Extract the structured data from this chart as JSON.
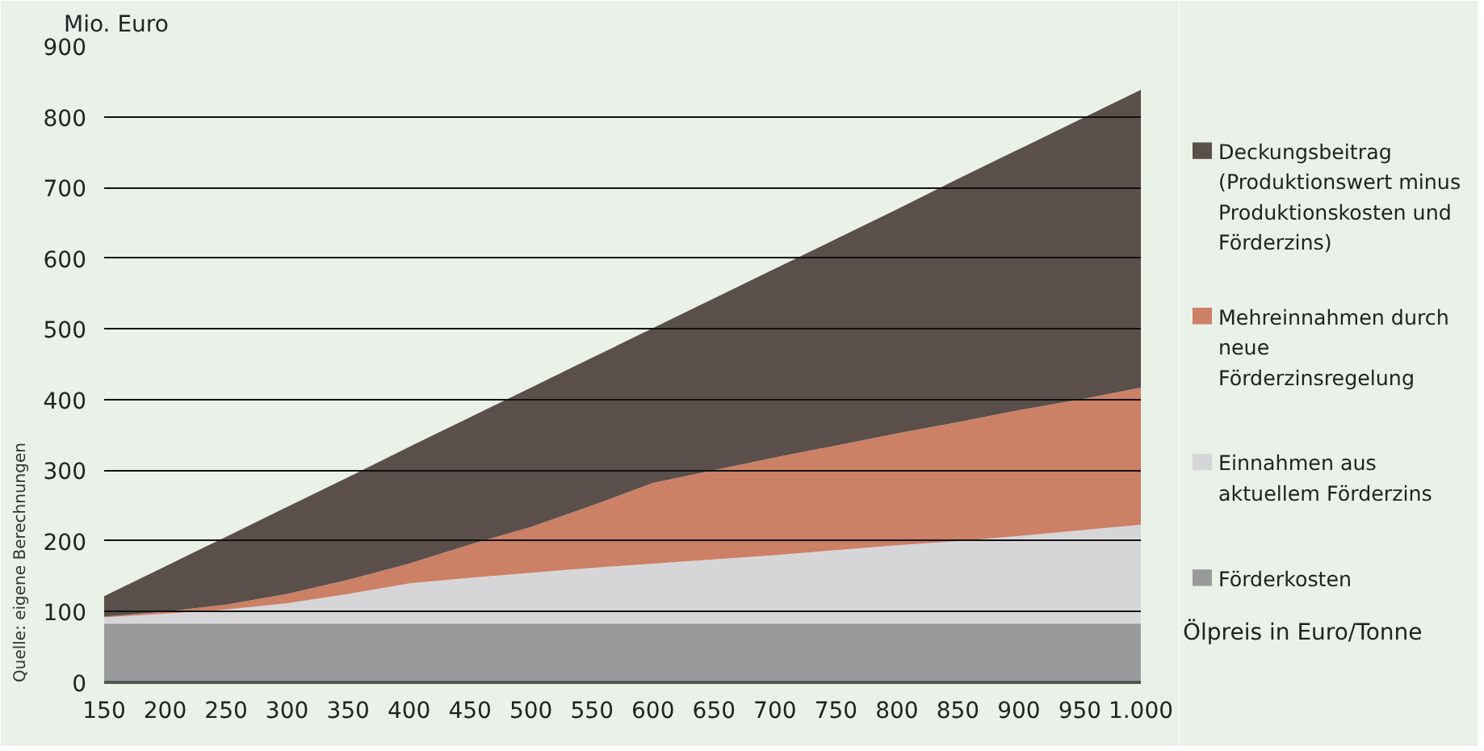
{
  "chart_data": {
    "type": "area",
    "stacked": true,
    "ylabel": "Mio. Euro",
    "xlabel": "Ölpreis in Euro/Tonne",
    "x": [
      150,
      200,
      250,
      300,
      350,
      400,
      450,
      500,
      550,
      600,
      650,
      700,
      750,
      800,
      850,
      900,
      950,
      1000
    ],
    "series": [
      {
        "name": "Förderkosten",
        "color": "#9a9a9c",
        "values": [
          83,
          83,
          83,
          83,
          83,
          83,
          83,
          83,
          83,
          83,
          83,
          83,
          83,
          83,
          83,
          83,
          83,
          83
        ]
      },
      {
        "name": "Einnahmen aus aktuellem Förderzins",
        "color": "#d6d6d8",
        "values": [
          9,
          14,
          20,
          29,
          42,
          57,
          65,
          72,
          79,
          85,
          91,
          97,
          104,
          111,
          117,
          124,
          132,
          140
        ]
      },
      {
        "name": "Mehreinnahmen durch neue Förderzinsregelung",
        "color": "#cc8066",
        "values": [
          1,
          3,
          7,
          13,
          20,
          28,
          47,
          65,
          88,
          114,
          126,
          138,
          148,
          158,
          168,
          178,
          185,
          194
        ]
      },
      {
        "name": "Deckungsbeitrag (Produktionswert minus Produktionskosten und Förderzins)",
        "color": "#5a4f4b",
        "values": [
          29,
          64,
          96,
          123,
          145,
          165,
          180,
          197,
          209,
          219,
          243,
          267,
          292,
          317,
          344,
          369,
          396,
          421
        ]
      }
    ],
    "xlim": [
      150,
      1000
    ],
    "ylim": [
      0,
      900
    ],
    "xticks": [
      150,
      200,
      250,
      300,
      350,
      400,
      450,
      500,
      550,
      600,
      650,
      700,
      750,
      800,
      850,
      900,
      950,
      {
        "value": 1000,
        "label": "1.000"
      }
    ],
    "yticks": [
      0,
      100,
      200,
      300,
      400,
      500,
      600,
      700,
      800,
      900
    ],
    "grid": "y",
    "legend": "right",
    "annotations": [
      "Quelle: eigene Berechnungen"
    ]
  }
}
